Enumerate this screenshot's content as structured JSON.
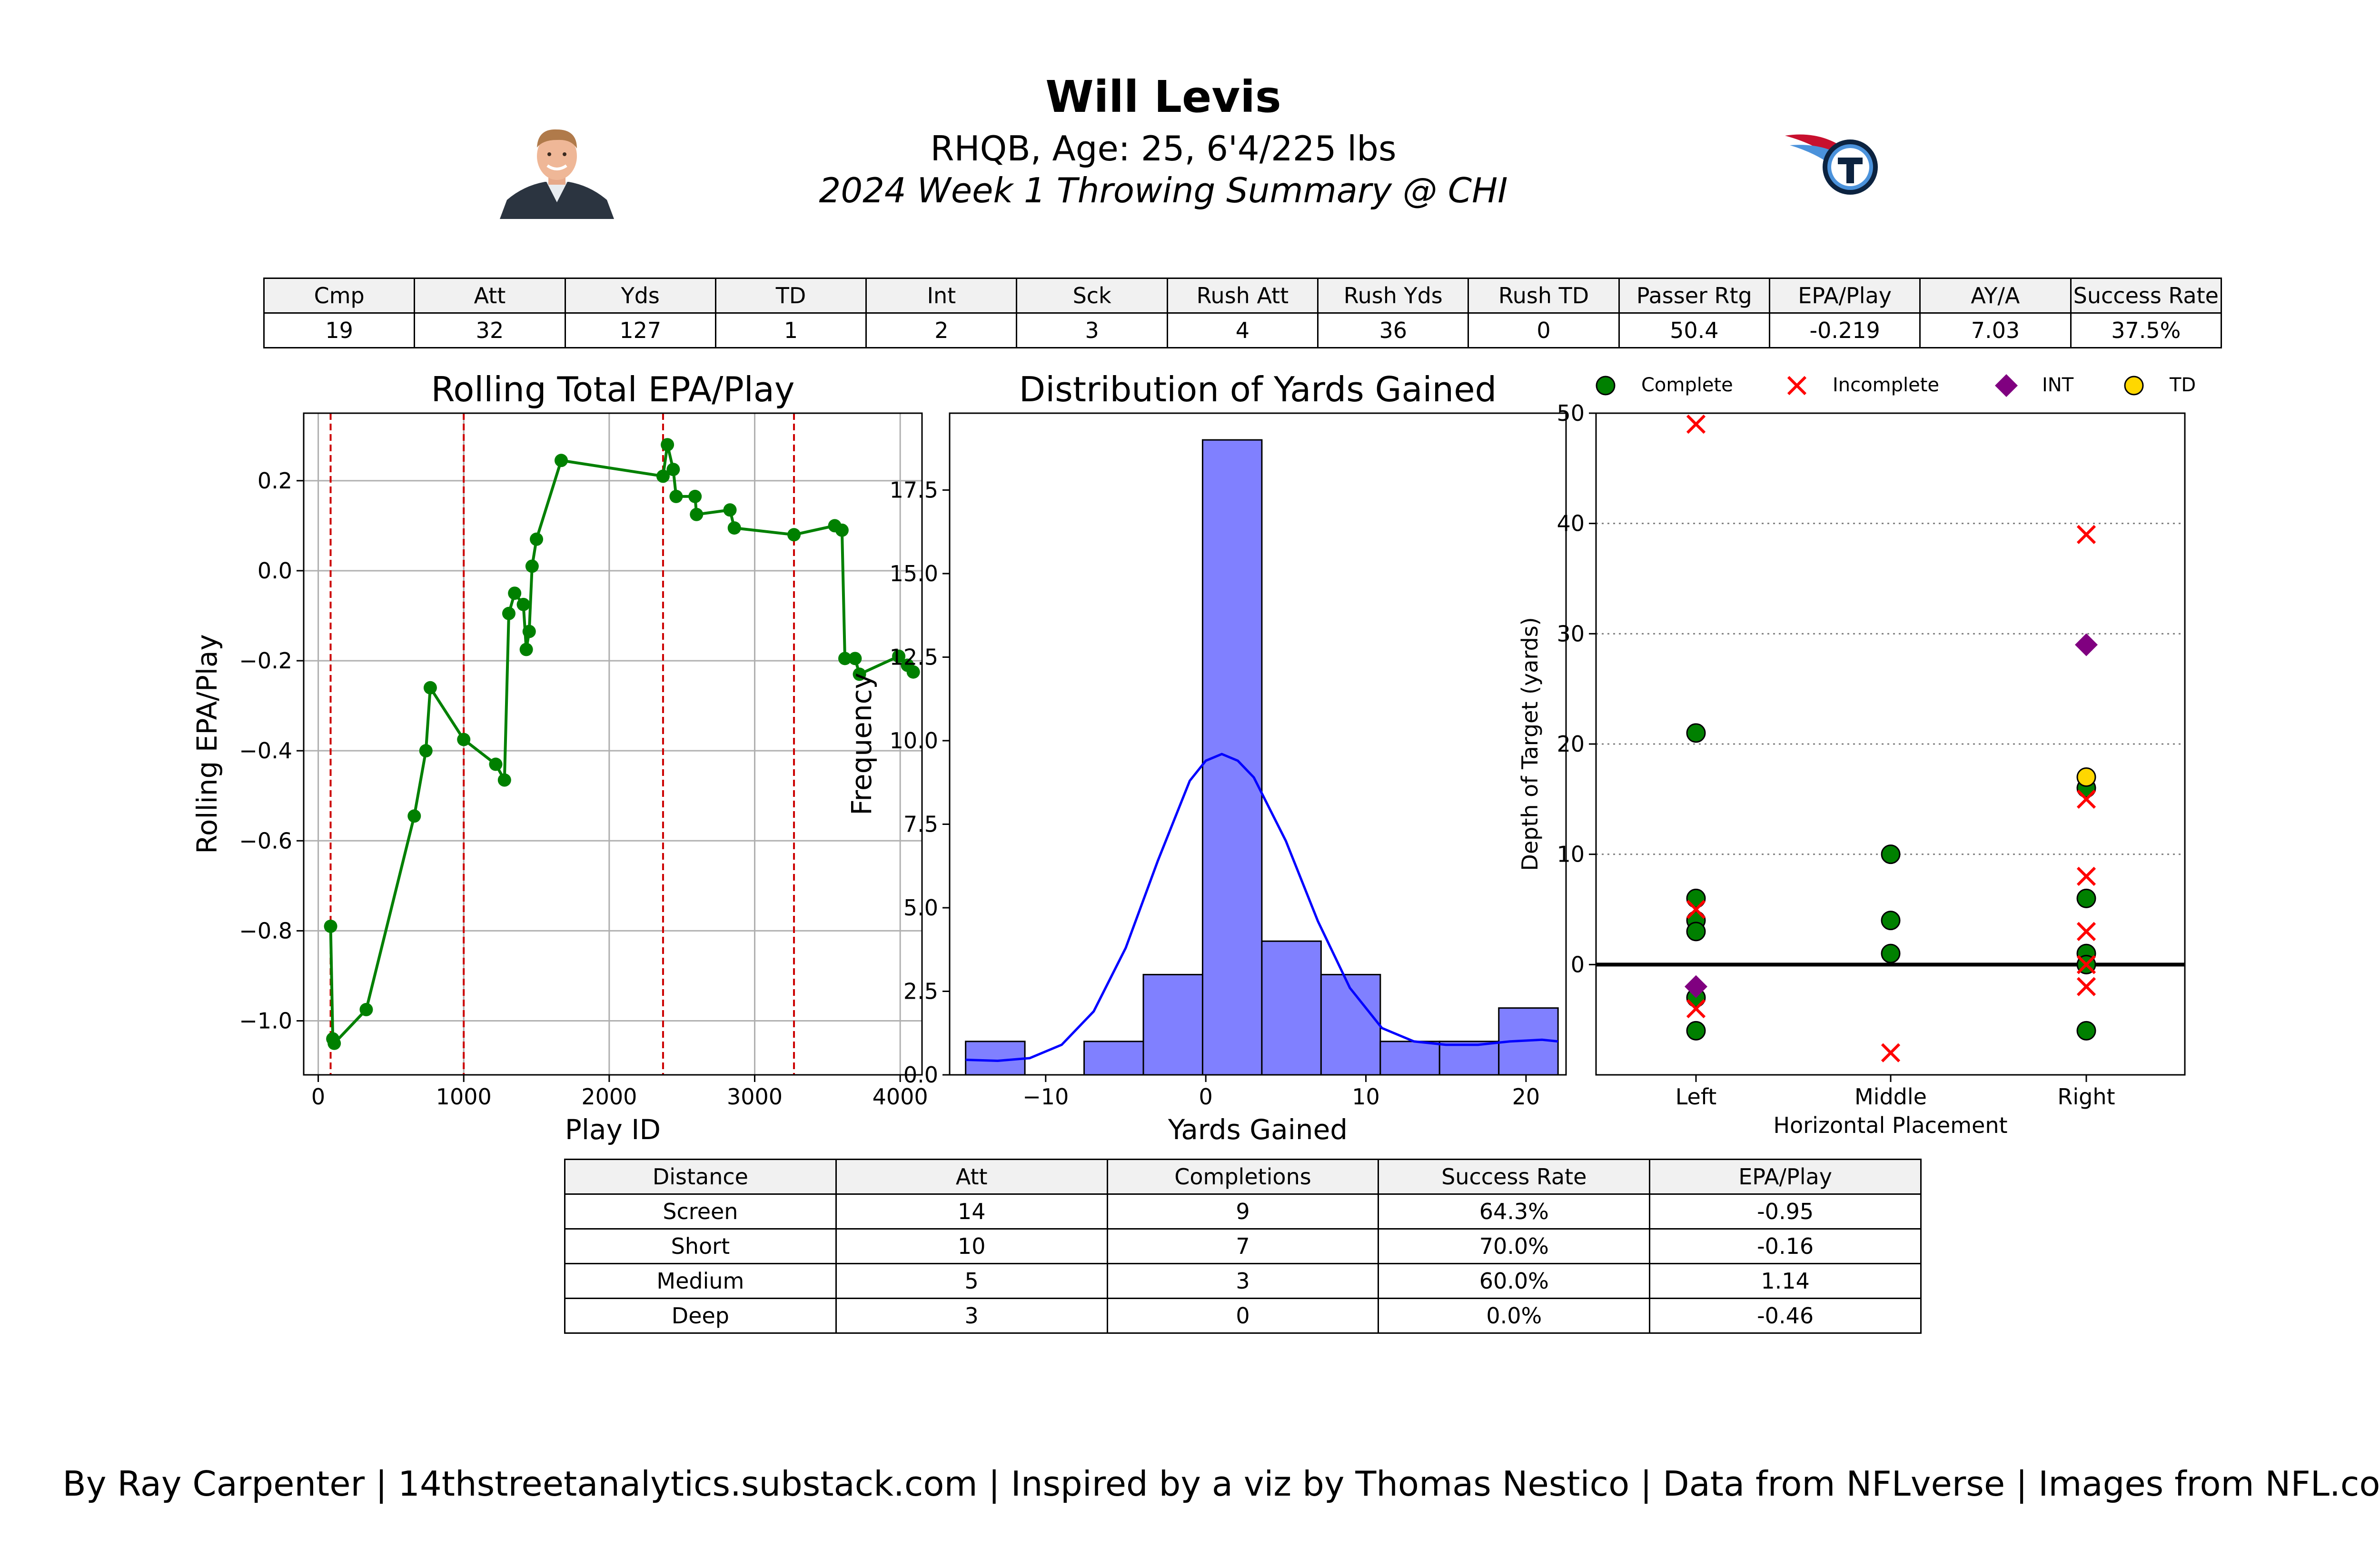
{
  "header": {
    "name": "Will Levis",
    "bio": "RHQB, Age: 25, 6'4/225 lbs",
    "summary_title": "2024 Week 1 Throwing Summary @ CHI"
  },
  "colors": {
    "line": "#008000",
    "marker": "#008000",
    "vline": "#cc0000",
    "hist_fill": "#8080ff",
    "kde": "#0000ff",
    "complete": "#008000",
    "incomplete": "#ff0000",
    "int": "#800080",
    "td": "#ffd700",
    "header_bg": "#f1f1f1"
  },
  "summary_table": {
    "headers": [
      "Cmp",
      "Att",
      "Yds",
      "TD",
      "Int",
      "Sck",
      "Rush Att",
      "Rush Yds",
      "Rush TD",
      "Passer Rtg",
      "EPA/Play",
      "AY/A",
      "Success Rate"
    ],
    "values": [
      "19",
      "32",
      "127",
      "1",
      "2",
      "3",
      "4",
      "36",
      "0",
      "50.4",
      "-0.219",
      "7.03",
      "37.5%"
    ]
  },
  "distance_table": {
    "headers": [
      "Distance",
      "Att",
      "Completions",
      "Success Rate",
      "EPA/Play"
    ],
    "rows": [
      [
        "Screen",
        "14",
        "9",
        "64.3%",
        "-0.95"
      ],
      [
        "Short",
        "10",
        "7",
        "70.0%",
        "-0.16"
      ],
      [
        "Medium",
        "5",
        "3",
        "60.0%",
        "1.14"
      ],
      [
        "Deep",
        "3",
        "0",
        "0.0%",
        "-0.46"
      ]
    ]
  },
  "footer": "By Ray Carpenter | 14thstreetanalytics.substack.com | Inspired by a viz by Thomas Nestico | Data from NFLverse | Images from NFL.com",
  "chart_data": [
    {
      "type": "line",
      "title": "Rolling Total EPA/Play",
      "xlabel": "Play ID",
      "ylabel": "Rolling EPA/Play",
      "xlim": [
        -100,
        4150
      ],
      "ylim": [
        -1.12,
        0.35
      ],
      "xticks": [
        0,
        1000,
        2000,
        3000,
        4000
      ],
      "yticks": [
        -1.0,
        -0.8,
        -0.6,
        -0.4,
        -0.2,
        0.0,
        0.2
      ],
      "ytick_labels": [
        "−1.0",
        "−0.8",
        "−0.6",
        "−0.4",
        "−0.2",
        "0.0",
        "0.2"
      ],
      "grid": true,
      "vlines": [
        85,
        1000,
        2370,
        3270
      ],
      "x": [
        85,
        100,
        110,
        330,
        660,
        740,
        770,
        1000,
        1220,
        1280,
        1310,
        1350,
        1410,
        1430,
        1450,
        1470,
        1500,
        1670,
        2370,
        2400,
        2440,
        2460,
        2590,
        2600,
        2830,
        2860,
        3270,
        3550,
        3600,
        3620,
        3690,
        3720,
        3990,
        4050,
        4090
      ],
      "y": [
        -0.79,
        -1.04,
        -1.05,
        -0.975,
        -0.545,
        -0.4,
        -0.26,
        -0.375,
        -0.43,
        -0.465,
        -0.095,
        -0.05,
        -0.075,
        -0.175,
        -0.135,
        0.01,
        0.07,
        0.245,
        0.21,
        0.28,
        0.225,
        0.165,
        0.165,
        0.125,
        0.135,
        0.095,
        0.08,
        0.1,
        0.09,
        -0.195,
        -0.195,
        -0.23,
        -0.19,
        -0.21,
        -0.225
      ]
    },
    {
      "type": "bar",
      "title": "Distribution of Yards Gained",
      "xlabel": "Yards Gained",
      "ylabel": "Frequency",
      "xlim": [
        -16,
        22.5
      ],
      "ylim": [
        0,
        19.8
      ],
      "xticks": [
        -10,
        0,
        10,
        20
      ],
      "xtick_labels": [
        "−10",
        "0",
        "10",
        "20"
      ],
      "yticks": [
        0,
        2.5,
        5,
        7.5,
        10,
        12.5,
        15,
        17.5
      ],
      "ytick_labels": [
        "0.0",
        "2.5",
        "5.0",
        "7.5",
        "10.0",
        "12.5",
        "15.0",
        "17.5"
      ],
      "bin_edges": [
        -15,
        -11.3,
        -7.6,
        -3.9,
        -0.2,
        3.5,
        7.2,
        10.9,
        14.6,
        18.3,
        22
      ],
      "values": [
        1,
        0,
        1,
        3,
        19,
        4,
        3,
        1,
        1,
        2
      ],
      "kde": {
        "x": [
          -15,
          -13,
          -11,
          -9,
          -7,
          -5,
          -3,
          -1,
          0,
          1,
          2,
          3,
          5,
          7,
          9,
          11,
          13,
          15,
          17,
          19,
          21,
          22
        ],
        "y": [
          0.45,
          0.42,
          0.5,
          0.9,
          1.9,
          3.8,
          6.4,
          8.8,
          9.4,
          9.6,
          9.4,
          8.9,
          7.0,
          4.6,
          2.6,
          1.4,
          1.0,
          0.9,
          0.9,
          1.0,
          1.05,
          1.0
        ]
      }
    },
    {
      "type": "scatter",
      "xlabel": "Horizontal Placement",
      "ylabel": "Depth of Target (yards)",
      "categories": [
        "Left",
        "Middle",
        "Right"
      ],
      "ylim": [
        -10,
        50
      ],
      "yticks": [
        0,
        10,
        20,
        30,
        40,
        50
      ],
      "grid": "y-dotted",
      "legend": [
        "Complete",
        "Incomplete",
        "INT",
        "TD"
      ],
      "legend_position": "top",
      "series": [
        {
          "name": "Complete",
          "marker": "circle",
          "points": [
            [
              "Left",
              21
            ],
            [
              "Left",
              6
            ],
            [
              "Left",
              4
            ],
            [
              "Left",
              3
            ],
            [
              "Left",
              -3
            ],
            [
              "Left",
              -6
            ],
            [
              "Middle",
              10
            ],
            [
              "Middle",
              4
            ],
            [
              "Middle",
              1
            ],
            [
              "Right",
              16
            ],
            [
              "Right",
              6
            ],
            [
              "Right",
              1
            ],
            [
              "Right",
              0
            ],
            [
              "Right",
              -6
            ]
          ]
        },
        {
          "name": "Incomplete",
          "marker": "x",
          "points": [
            [
              "Left",
              49
            ],
            [
              "Left",
              5
            ],
            [
              "Left",
              -4
            ],
            [
              "Middle",
              -8
            ],
            [
              "Right",
              39
            ],
            [
              "Right",
              15
            ],
            [
              "Right",
              8
            ],
            [
              "Right",
              3
            ],
            [
              "Right",
              0
            ],
            [
              "Right",
              -2
            ]
          ]
        },
        {
          "name": "INT",
          "marker": "diamond",
          "points": [
            [
              "Left",
              -2
            ],
            [
              "Right",
              29
            ]
          ]
        },
        {
          "name": "TD",
          "marker": "circle",
          "points": [
            [
              "Right",
              17
            ]
          ]
        }
      ]
    }
  ]
}
